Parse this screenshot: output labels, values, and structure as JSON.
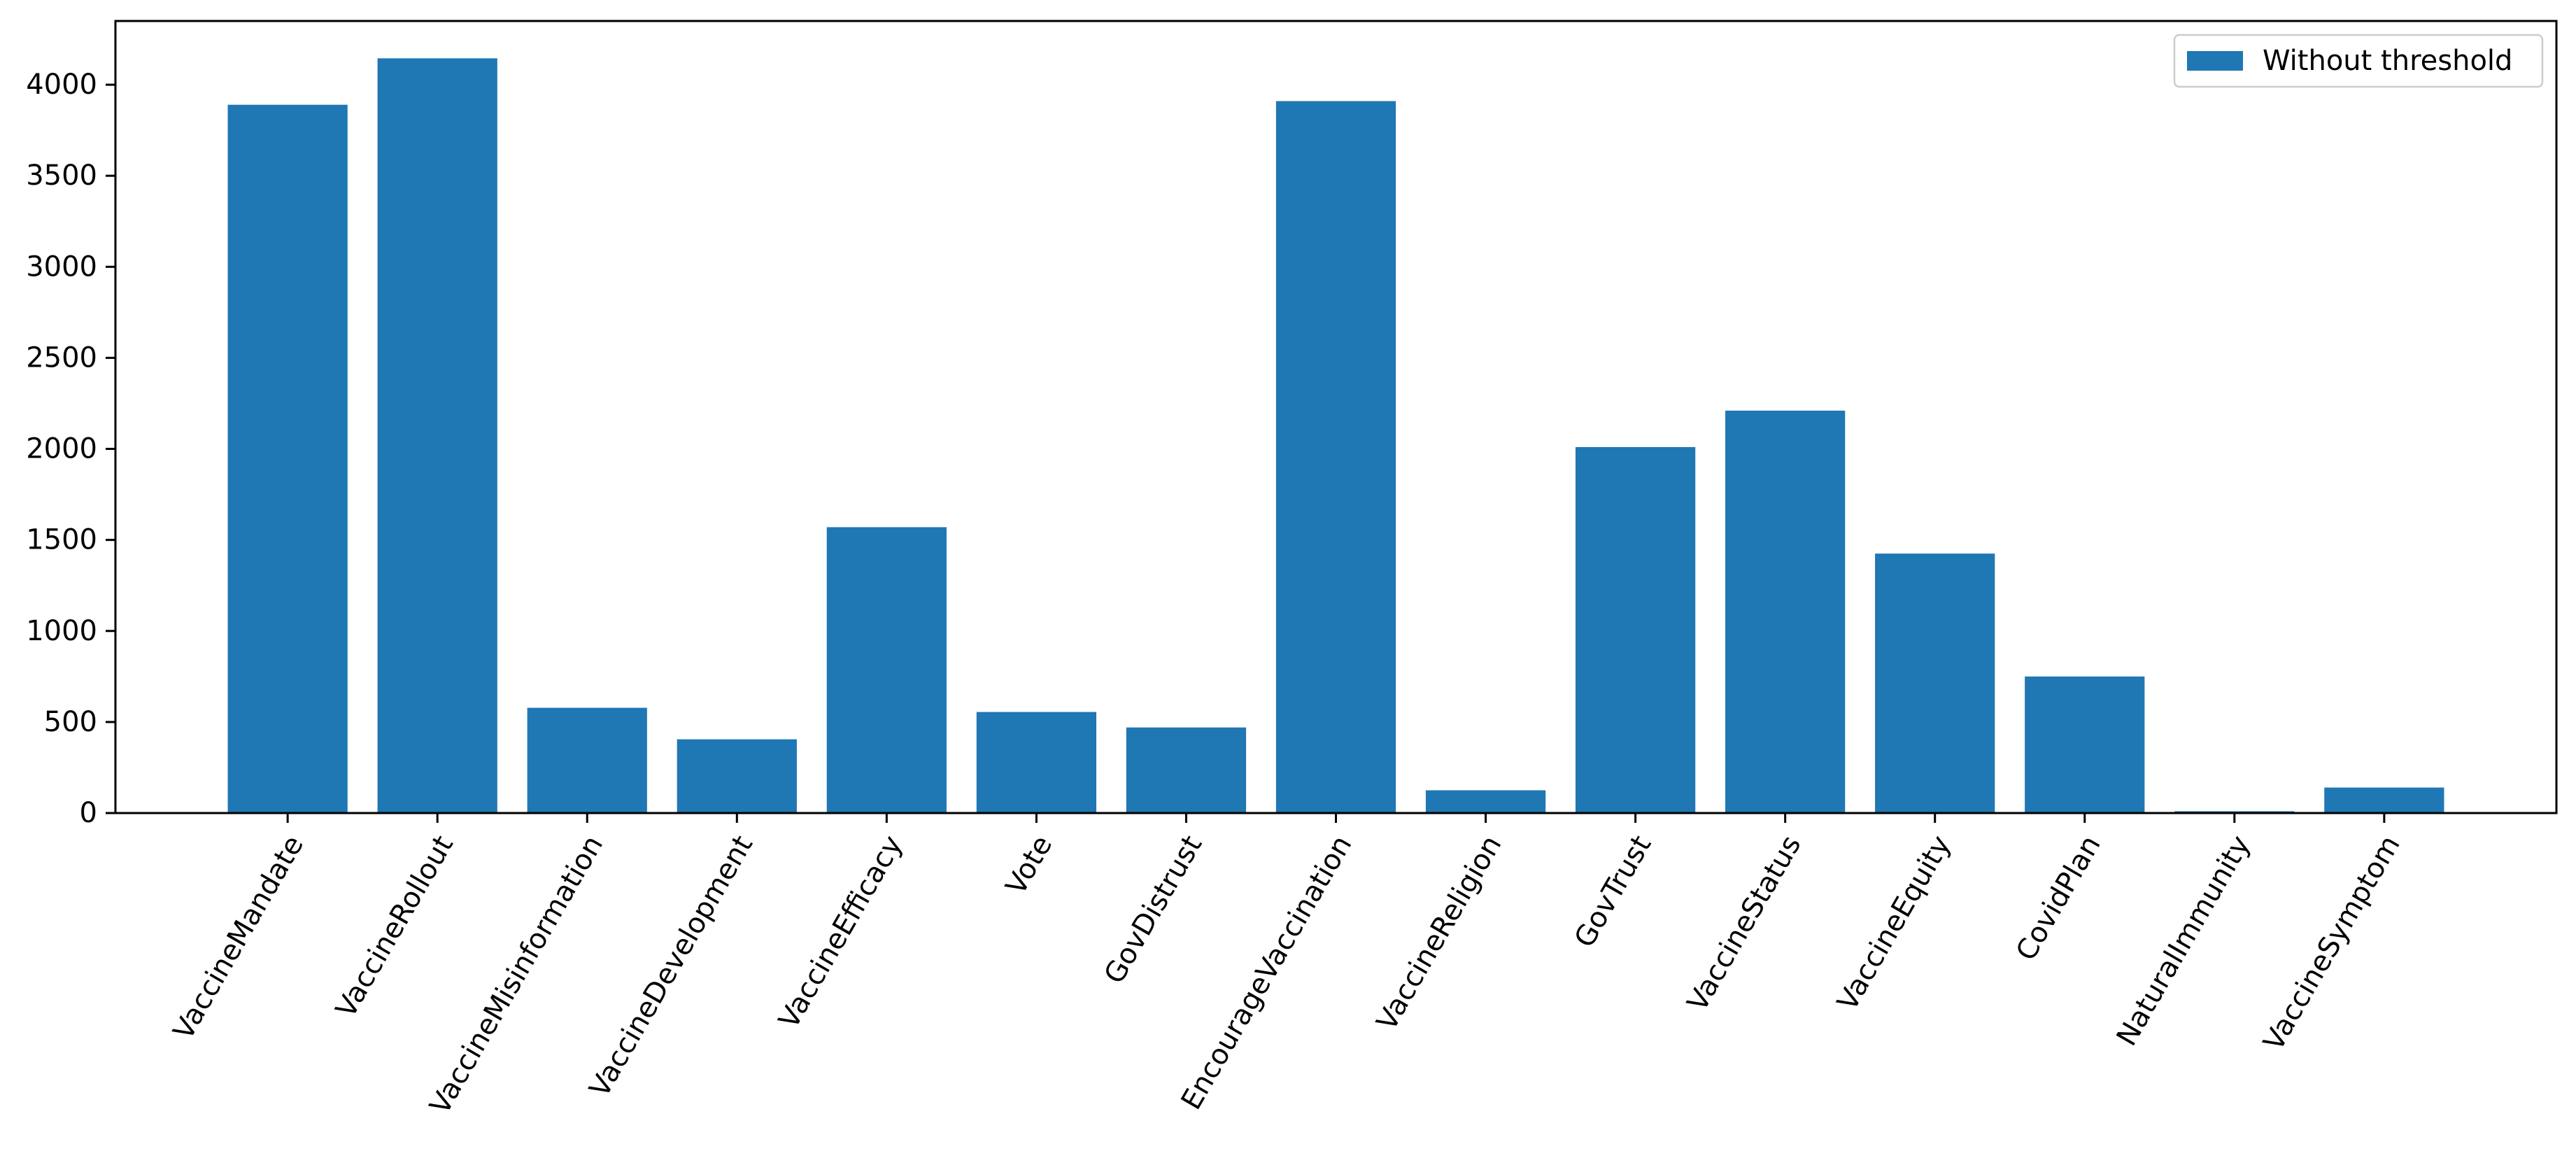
{
  "chart_data": {
    "type": "bar",
    "title": "",
    "xlabel": "",
    "ylabel": "",
    "categories": [
      "VaccineMandate",
      "VaccineRollout",
      "VaccineMisinformation",
      "VaccineDevelopment",
      "VaccineEfficacy",
      "Vote",
      "GovDistrust",
      "EncourageVaccination",
      "VaccineReligion",
      "GovTrust",
      "VaccineStatus",
      "VaccineEquity",
      "CovidPlan",
      "NaturalImmunity",
      "VaccineSymptom"
    ],
    "series": [
      {
        "name": "Without threshold",
        "color": "#1f77b4",
        "values": [
          3890,
          4145,
          578,
          405,
          1570,
          555,
          470,
          3910,
          125,
          2010,
          2210,
          1425,
          750,
          10,
          140
        ]
      }
    ],
    "ylim": [
      0,
      4350
    ],
    "yticks": [
      0,
      500,
      1000,
      1500,
      2000,
      2500,
      3000,
      3500,
      4000
    ],
    "ytick_labels": [
      "0",
      "500",
      "1000",
      "1500",
      "2000",
      "2500",
      "3000",
      "3500",
      "4000"
    ],
    "xtick_rotation": 60,
    "grid": false,
    "legend": {
      "position": "top-right",
      "entries": [
        "Without threshold"
      ]
    }
  }
}
